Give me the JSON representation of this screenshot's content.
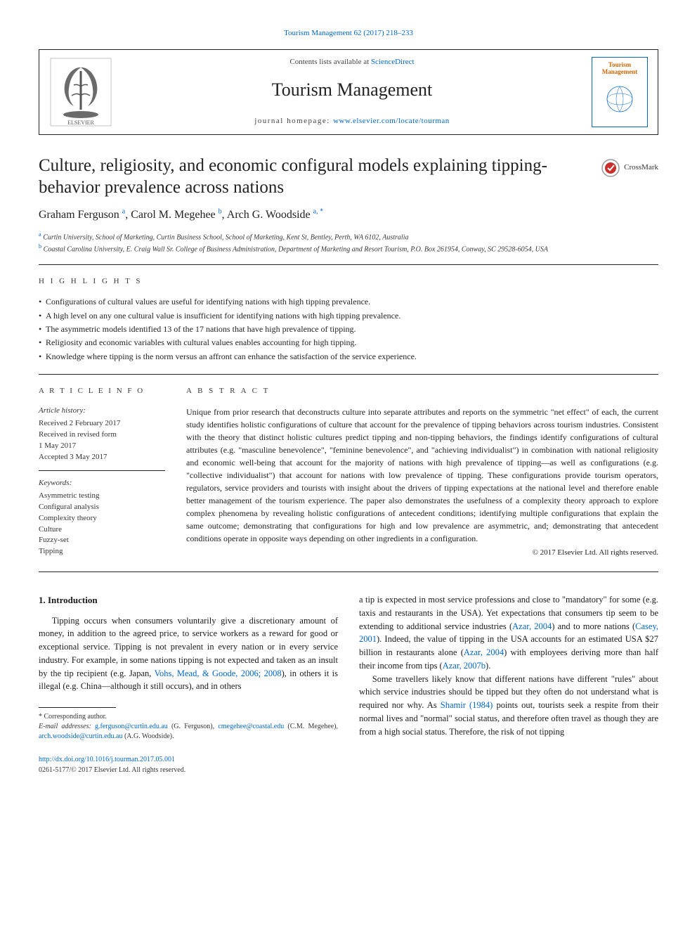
{
  "top_link": "Tourism Management 62 (2017) 218–233",
  "header": {
    "contents_prefix": "Contents lists available at ",
    "contents_link": "ScienceDirect",
    "journal": "Tourism Management",
    "homepage_prefix": "journal homepage: ",
    "homepage_url": "www.elsevier.com/locate/tourman",
    "cover_title": "Tourism Management"
  },
  "article": {
    "title": "Culture, religiosity, and economic configural models explaining tipping-behavior prevalence across nations",
    "crossmark": "CrossMark",
    "authors_html": "Graham Ferguson <sup>a</sup>, Carol M. Megehee <sup>b</sup>, Arch G. Woodside <sup>a, *</sup>",
    "affiliations": {
      "a": "Curtin University, School of Marketing, Curtin Business School, School of Marketing, Kent St, Bentley, Perth, WA 6102, Australia",
      "b": "Coastal Carolina University, E. Craig Wall Sr. College of Business Administration, Department of Marketing and Resort Tourism, P.O. Box 261954, Conway, SC 29528-6054, USA"
    }
  },
  "highlights": {
    "label": "H I G H L I G H T S",
    "items": [
      "Configurations of cultural values are useful for identifying nations with high tipping prevalence.",
      "A high level on any one cultural value is insufficient for identifying nations with high tipping prevalence.",
      "The asymmetric models identified 13 of the 17 nations that have high prevalence of tipping.",
      "Religiosity and economic variables with cultural values enables accounting for high tipping.",
      "Knowledge where tipping is the norm versus an affront can enhance the satisfaction of the service experience."
    ]
  },
  "article_info": {
    "label": "A R T I C L E  I N F O",
    "history_title": "Article history:",
    "history": [
      "Received 2 February 2017",
      "Received in revised form",
      "1 May 2017",
      "Accepted 3 May 2017"
    ],
    "keywords_title": "Keywords:",
    "keywords": [
      "Asymmetric testing",
      "Configural analysis",
      "Complexity theory",
      "Culture",
      "Fuzzy-set",
      "Tipping"
    ]
  },
  "abstract": {
    "label": "A B S T R A C T",
    "text": "Unique from prior research that deconstructs culture into separate attributes and reports on the symmetric \"net effect\" of each, the current study identifies holistic configurations of culture that account for the prevalence of tipping behaviors across tourism industries. Consistent with the theory that distinct holistic cultures predict tipping and non-tipping behaviors, the findings identify configurations of cultural attributes (e.g. \"masculine benevolence\", \"feminine benevolence\", and \"achieving individualist\") in combination with national religiosity and economic well-being that account for the majority of nations with high prevalence of tipping—as well as configurations (e.g. \"collective individualist\") that account for nations with low prevalence of tipping. These configurations provide tourism operators, regulators, service providers and tourists with insight about the drivers of tipping expectations at the national level and therefore enable better management of the tourism experience. The paper also demonstrates the usefulness of a complexity theory approach to explore complex phenomena by revealing holistic configurations of antecedent conditions; identifying multiple configurations that explain the same outcome; demonstrating that configurations for high and low prevalence are asymmetric, and; demonstrating that antecedent conditions operate in opposite ways depending on other ingredients in a configuration.",
    "copyright": "© 2017 Elsevier Ltd. All rights reserved."
  },
  "body": {
    "section_heading": "1. Introduction",
    "left_col": "Tipping occurs when consumers voluntarily give a discretionary amount of money, in addition to the agreed price, to service workers as a reward for good or exceptional service. Tipping is not prevalent in every nation or in every service industry. For example, in some nations tipping is not expected and taken as an insult by the tip recipient (e.g. Japan, <span class=\"cite\">Vohs, Mead, & Goode, 2006; 2008</span>), in others it is illegal (e.g. China—although it still occurs), and in others",
    "right_col_p1": "a tip is expected in most service professions and close to \"mandatory\" for some (e.g. taxis and restaurants in the USA). Yet expectations that consumers tip seem to be extending to additional service industries (<span class=\"cite\">Azar, 2004</span>) and to more nations (<span class=\"cite\">Casey, 2001</span>). Indeed, the value of tipping in the USA accounts for an estimated USA $27 billion in restaurants alone (<span class=\"cite\">Azar, 2004</span>) with employees deriving more than half their income from tips (<span class=\"cite\">Azar, 2007b</span>).",
    "right_col_p2": "Some travellers likely know that different nations have different \"rules\" about which service industries should be tipped but they often do not understand what is required nor why. As <span class=\"cite\">Shamir (1984)</span> points out, tourists seek a respite from their normal lives and \"normal\" social status, and therefore often travel as though they are from a high social status. Therefore, the risk of not tipping"
  },
  "footnotes": {
    "corresponding": "* Corresponding author.",
    "emails_label": "E-mail addresses: ",
    "emails": "g.ferguson@curtin.edu.au (G. Ferguson), cmegehee@coastal.edu (C.M. Megehee), arch.woodside@curtin.edu.au (A.G. Woodside)."
  },
  "footer": {
    "doi": "http://dx.doi.org/10.1016/j.tourman.2017.05.001",
    "issn": "0261-5177/© 2017 Elsevier Ltd. All rights reserved."
  },
  "colors": {
    "link": "#0066cc",
    "text": "#1a1a1a",
    "cover_title": "#cc6600"
  }
}
